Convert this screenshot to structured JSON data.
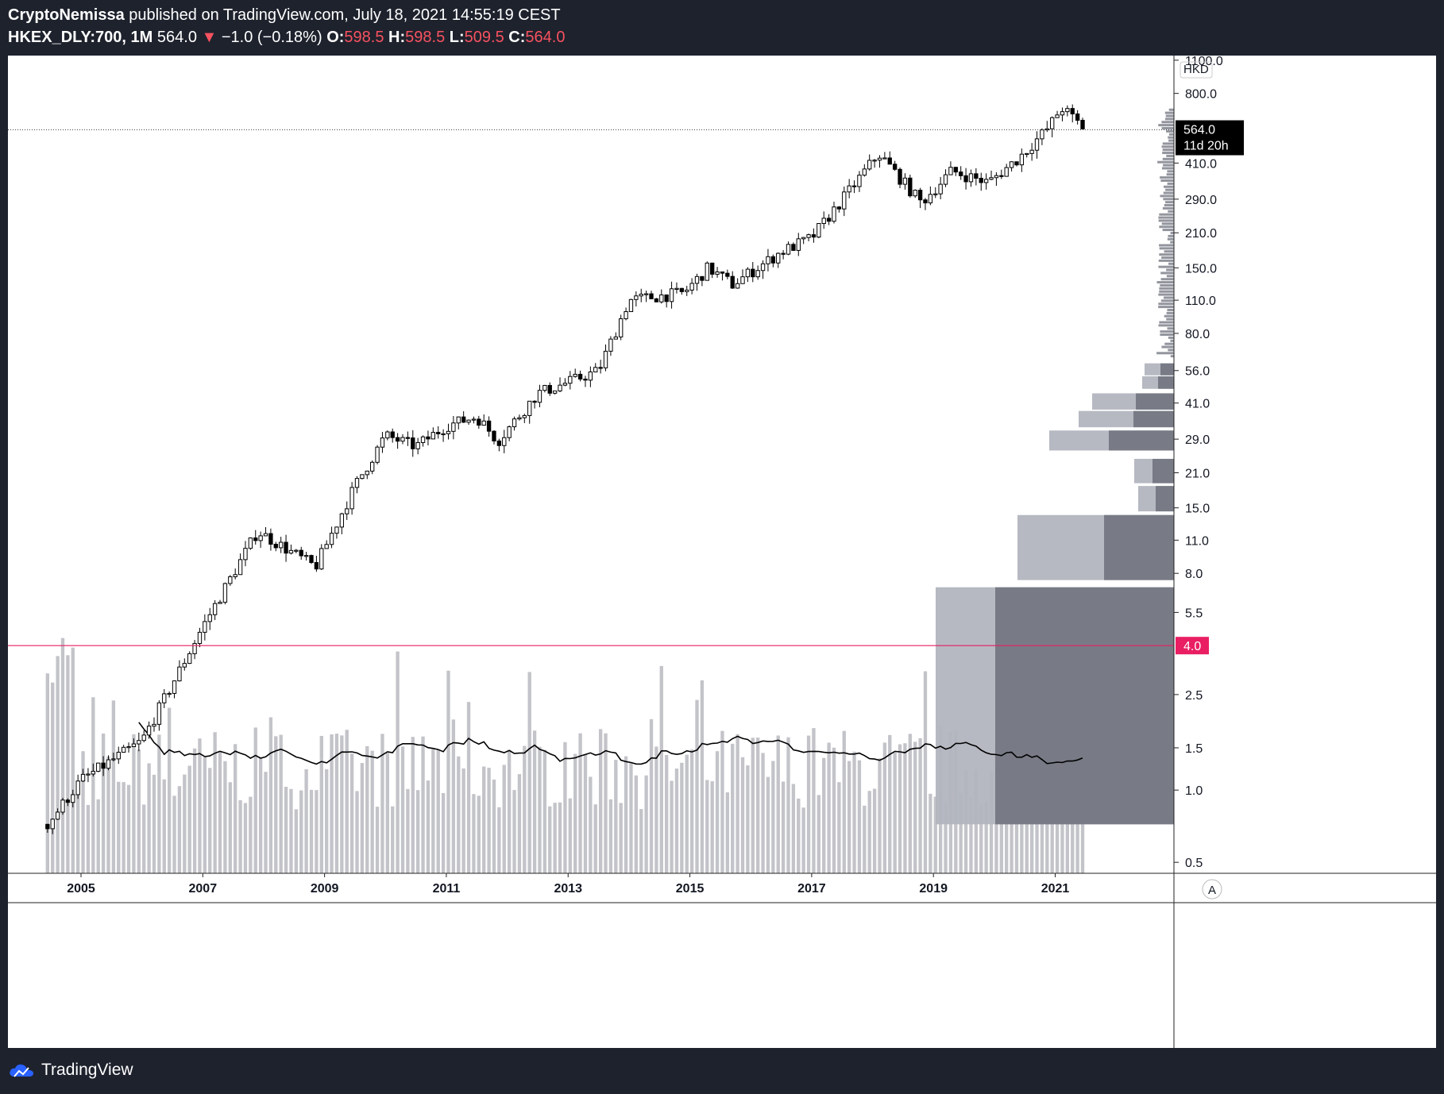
{
  "header": {
    "author": "CryptoNemissa",
    "published_text": "published on TradingView.com, July 18, 2021 14:55:19 CEST",
    "symbol": "HKEX_DLY:700",
    "interval": "1M",
    "last_price": "564.0",
    "down_arrow": "▼",
    "change": "−1.0 (−0.18%)",
    "open_label": "O:",
    "open": "598.5",
    "high_label": "H:",
    "high": "598.5",
    "low_label": "L:",
    "low": "509.5",
    "close_label": "C:",
    "close": "564.0"
  },
  "footer": {
    "brand": "TradingView"
  },
  "colors": {
    "background": "#1e222d",
    "chart_bg": "#ffffff",
    "negative": "#f7525f",
    "horizontal_line": "#e91e63",
    "volume_bar": "#c3c4c9",
    "volume_profile_up": "#b2b5be",
    "volume_profile_down": "#787b86",
    "candle_body": "#000000"
  },
  "chart_data": {
    "type": "candlestick",
    "scale": "log",
    "currency": "HKD",
    "y_tick_labels": [
      "1100.0",
      "800.0",
      "410.0",
      "290.0",
      "210.0",
      "150.0",
      "110.0",
      "80.0",
      "56.0",
      "41.0",
      "29.0",
      "21.0",
      "15.0",
      "11.0",
      "8.0",
      "5.5",
      "2.5",
      "1.5",
      "1.0",
      "0.5"
    ],
    "y_tick_values": [
      1100,
      800,
      410,
      290,
      210,
      150,
      110,
      80,
      56,
      41,
      29,
      21,
      15,
      11,
      8,
      5.5,
      2.5,
      1.5,
      1.0,
      0.5
    ],
    "ylim": [
      0.45,
      1150
    ],
    "x_tick_labels": [
      "2005",
      "2007",
      "2009",
      "2011",
      "2013",
      "2015",
      "2017",
      "2019",
      "2021"
    ],
    "x_tick_years": [
      2005,
      2007,
      2009,
      2011,
      2013,
      2015,
      2017,
      2019,
      2021
    ],
    "xlim": [
      2003.8,
      2022.95
    ],
    "last_price_label": "564.0",
    "countdown_label": "11d 20h",
    "horizontal_line": {
      "value": 4.0,
      "label": "4.0"
    },
    "scale_mode_label": "A",
    "price_path_yearly": [
      {
        "t": 2004.45,
        "close": 0.72
      },
      {
        "t": 2005.0,
        "close": 1.1
      },
      {
        "t": 2006.0,
        "close": 1.6
      },
      {
        "t": 2007.0,
        "close": 4.8
      },
      {
        "t": 2007.9,
        "close": 12.0
      },
      {
        "t": 2008.85,
        "close": 8.5
      },
      {
        "t": 2009.5,
        "close": 18.5
      },
      {
        "t": 2010.0,
        "close": 30.0
      },
      {
        "t": 2010.5,
        "close": 27.0
      },
      {
        "t": 2011.0,
        "close": 33.0
      },
      {
        "t": 2011.5,
        "close": 36.0
      },
      {
        "t": 2011.85,
        "close": 28.5
      },
      {
        "t": 2012.5,
        "close": 45.0
      },
      {
        "t": 2013.0,
        "close": 50.0
      },
      {
        "t": 2013.5,
        "close": 56.0
      },
      {
        "t": 2014.0,
        "close": 110.0
      },
      {
        "t": 2014.9,
        "close": 118.0
      },
      {
        "t": 2015.3,
        "close": 150.0
      },
      {
        "t": 2015.7,
        "close": 128.0
      },
      {
        "t": 2016.5,
        "close": 175.0
      },
      {
        "t": 2017.0,
        "close": 200.0
      },
      {
        "t": 2017.6,
        "close": 310.0
      },
      {
        "t": 2018.1,
        "close": 450.0
      },
      {
        "t": 2018.8,
        "close": 280.0
      },
      {
        "t": 2019.3,
        "close": 380.0
      },
      {
        "t": 2019.9,
        "close": 340.0
      },
      {
        "t": 2020.4,
        "close": 430.0
      },
      {
        "t": 2020.9,
        "close": 580.0
      },
      {
        "t": 2021.1,
        "close": 700.0
      },
      {
        "t": 2021.5,
        "close": 564.0
      }
    ],
    "volume_profile": [
      {
        "low": 0.72,
        "high": 7.0,
        "up": 300,
        "down": 225
      },
      {
        "low": 7.5,
        "high": 14.0,
        "up": 197,
        "down": 88
      },
      {
        "low": 14.5,
        "high": 18.5,
        "up": 45,
        "down": 23
      },
      {
        "low": 19.0,
        "high": 24.0,
        "up": 50,
        "down": 27
      },
      {
        "low": 26.0,
        "high": 31.5,
        "up": 157,
        "down": 82
      },
      {
        "low": 32.5,
        "high": 38.0,
        "up": 120,
        "down": 51
      },
      {
        "low": 38.5,
        "high": 45.0,
        "up": 103,
        "down": 48
      },
      {
        "low": 47.0,
        "high": 53.0,
        "up": 40,
        "down": 20
      },
      {
        "low": 53.5,
        "high": 60.0,
        "up": 37,
        "down": 17
      }
    ]
  }
}
